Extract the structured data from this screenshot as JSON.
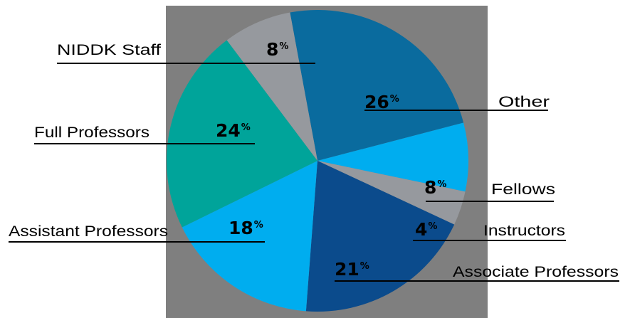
{
  "chart_data": {
    "type": "pie",
    "title": "",
    "slices": [
      {
        "label": "Other",
        "value": 26,
        "color": "#0a6b9e"
      },
      {
        "label": "Fellows",
        "value": 8,
        "color": "#00adef"
      },
      {
        "label": "Instructors",
        "value": 4,
        "color": "#96999e"
      },
      {
        "label": "Associate Professors",
        "value": 21,
        "color": "#0b4b8c"
      },
      {
        "label": "Assistant Professors",
        "value": 18,
        "color": "#00adef"
      },
      {
        "label": "Full Professors",
        "value": 24,
        "color": "#00a49a"
      },
      {
        "label": "NIDDK Staff",
        "value": 8,
        "color": "#96999e"
      }
    ],
    "percent_sign": "%",
    "legend": "none",
    "background_color": "#7f7f7f"
  }
}
